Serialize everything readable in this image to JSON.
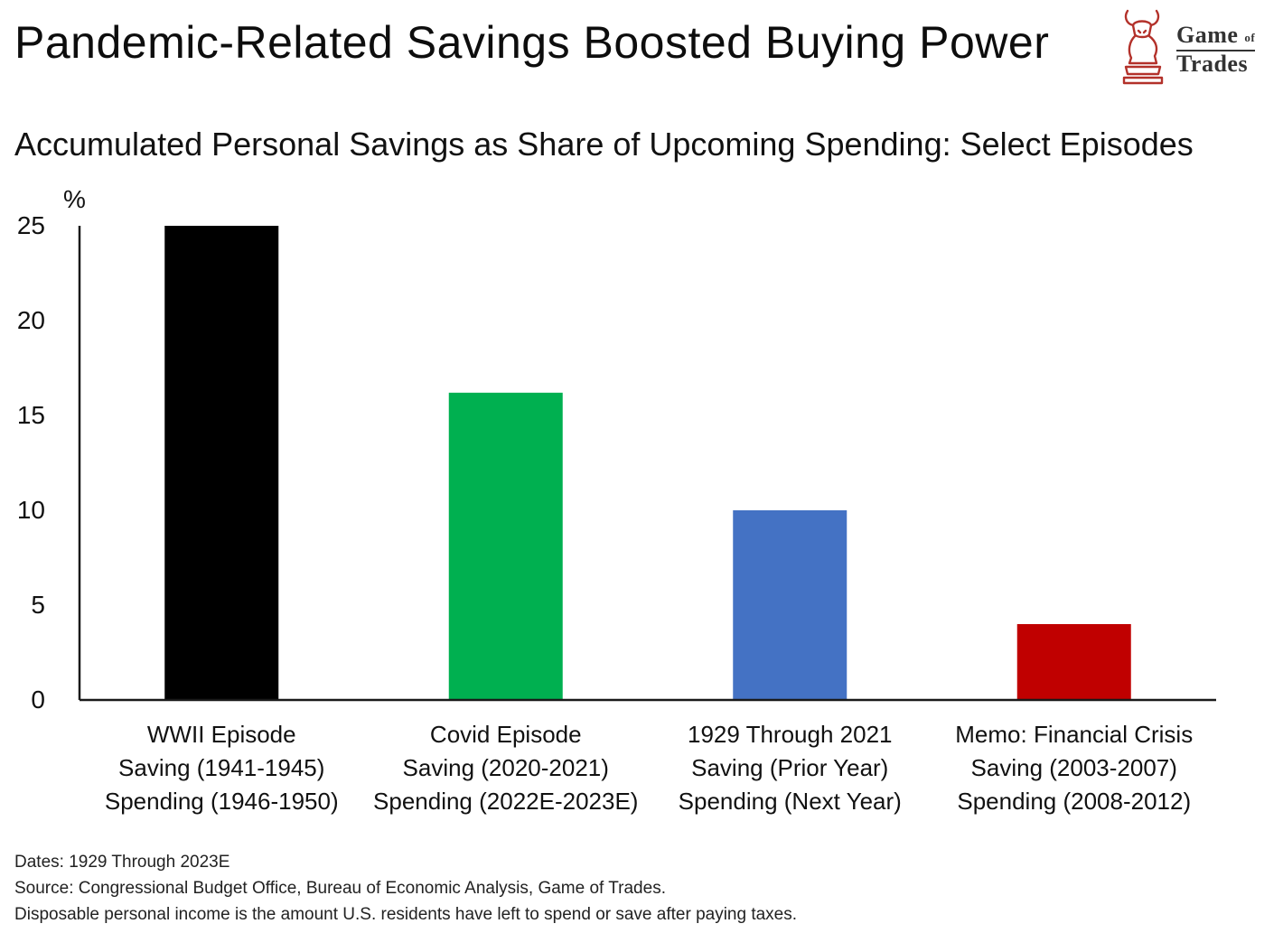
{
  "header": {
    "title": "Pandemic-Related Savings Boosted Buying Power",
    "logo": {
      "line1": "Game",
      "of": "of",
      "line2": "Trades",
      "icon": "bull-chess-knight-icon"
    }
  },
  "chart_data": {
    "type": "bar",
    "title": "Accumulated Personal Savings as Share of Upcoming Spending: Select Episodes",
    "ylabel": "%",
    "ylim": [
      0,
      25
    ],
    "yticks": [
      0,
      5,
      10,
      15,
      20,
      25
    ],
    "grid": false,
    "categories": [
      [
        "WWII Episode",
        "Saving (1941-1945)",
        "Spending (1946-1950)"
      ],
      [
        "Covid Episode",
        "Saving (2020-2021)",
        "Spending (2022E-2023E)"
      ],
      [
        "1929 Through 2021",
        "Saving (Prior Year)",
        "Spending (Next Year)"
      ],
      [
        "Memo: Financial Crisis",
        "Saving (2003-2007)",
        "Spending (2008-2012)"
      ]
    ],
    "values": [
      25.0,
      16.2,
      10.0,
      4.0
    ],
    "colors": [
      "#000000",
      "#00b050",
      "#4472c4",
      "#c00000"
    ]
  },
  "footer": {
    "dates": "Dates: 1929 Through 2023E",
    "source": "Source: Congressional Budget Office, Bureau of Economic Analysis, Game of Trades.",
    "note": "Disposable personal income is the amount U.S. residents have left to spend or save after paying taxes."
  }
}
